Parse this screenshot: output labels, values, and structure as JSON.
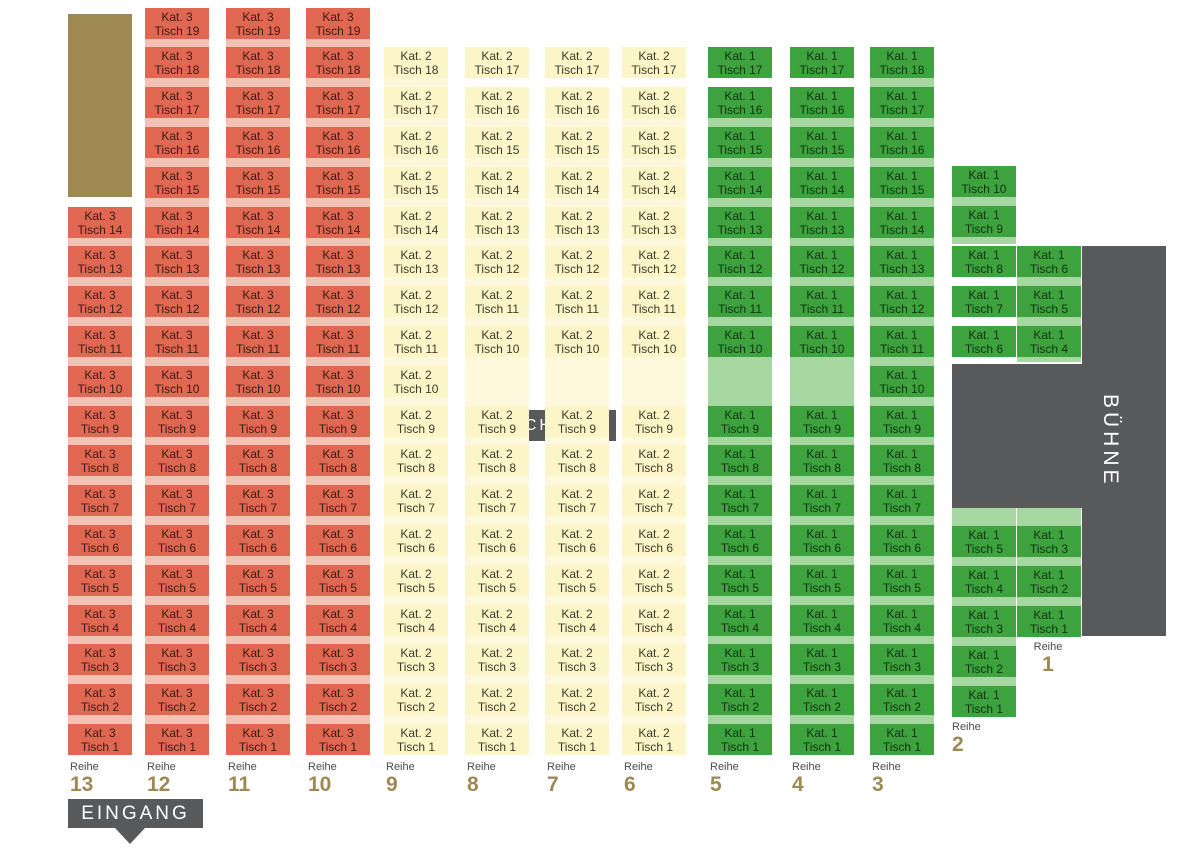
{
  "technik_label": "TECHNIK",
  "stage_label": "BÜHNE",
  "entrance_label": "EINGANG",
  "row_word": "Reihe",
  "table_word": "Tisch",
  "colors": {
    "kat1": "#3ea33e",
    "kat2": "#fcf5c8",
    "kat3": "#e06852",
    "stage": "#58595b",
    "row_number": "#9d8953",
    "olive_block": "#9f8953"
  },
  "rows": [
    {
      "row": "13",
      "kat": "Kat. 3",
      "tables": [
        "Tisch 14",
        "Tisch 13",
        "Tisch 12",
        "Tisch 11",
        "Tisch 10",
        "Tisch 9",
        "Tisch 8",
        "Tisch 7",
        "Tisch 6",
        "Tisch 5",
        "Tisch 4",
        "Tisch 3",
        "Tisch 2",
        "Tisch 1"
      ]
    },
    {
      "row": "12",
      "kat": "Kat. 3",
      "tables": [
        "Tisch 19",
        "Tisch 18",
        "Tisch 17",
        "Tisch 16",
        "Tisch 15",
        "Tisch 14",
        "Tisch 13",
        "Tisch 12",
        "Tisch 11",
        "Tisch 10",
        "Tisch 9",
        "Tisch 8",
        "Tisch 7",
        "Tisch 6",
        "Tisch 5",
        "Tisch 4",
        "Tisch 3",
        "Tisch 2",
        "Tisch 1"
      ]
    },
    {
      "row": "11",
      "kat": "Kat. 3",
      "tables": [
        "Tisch 19",
        "Tisch 18",
        "Tisch 17",
        "Tisch 16",
        "Tisch 15",
        "Tisch 14",
        "Tisch 13",
        "Tisch 12",
        "Tisch 11",
        "Tisch 10",
        "Tisch 9",
        "Tisch 8",
        "Tisch 7",
        "Tisch 6",
        "Tisch 5",
        "Tisch 4",
        "Tisch 3",
        "Tisch 2",
        "Tisch 1"
      ]
    },
    {
      "row": "10",
      "kat": "Kat. 3",
      "tables": [
        "Tisch 19",
        "Tisch 18",
        "Tisch 17",
        "Tisch 16",
        "Tisch 15",
        "Tisch 14",
        "Tisch 13",
        "Tisch 12",
        "Tisch 11",
        "Tisch 10",
        "Tisch 9",
        "Tisch 8",
        "Tisch 7",
        "Tisch 6",
        "Tisch 5",
        "Tisch 4",
        "Tisch 3",
        "Tisch 2",
        "Tisch 1"
      ]
    },
    {
      "row": "9",
      "kat": "Kat. 2",
      "tables": [
        "Tisch 18",
        "Tisch 17",
        "Tisch 16",
        "Tisch 15",
        "Tisch 14",
        "Tisch 13",
        "Tisch 12",
        "Tisch 11",
        "Tisch 10",
        "Tisch 9",
        "Tisch 8",
        "Tisch 7",
        "Tisch 6",
        "Tisch 5",
        "Tisch 4",
        "Tisch 3",
        "Tisch 2",
        "Tisch 1"
      ]
    },
    {
      "row": "8",
      "kat": "Kat. 2",
      "tables": [
        "Tisch 17",
        "Tisch 16",
        "Tisch 15",
        "Tisch 14",
        "Tisch 13",
        "Tisch 12",
        "Tisch 11",
        "Tisch 10",
        "Tisch 9",
        "Tisch 8",
        "Tisch 7",
        "Tisch 6",
        "Tisch 5",
        "Tisch 4",
        "Tisch 3",
        "Tisch 2",
        "Tisch 1"
      ]
    },
    {
      "row": "7",
      "kat": "Kat. 2",
      "tables": [
        "Tisch 17",
        "Tisch 16",
        "Tisch 15",
        "Tisch 14",
        "Tisch 13",
        "Tisch 12",
        "Tisch 11",
        "Tisch 10",
        "Tisch 9",
        "Tisch 8",
        "Tisch 7",
        "Tisch 6",
        "Tisch 5",
        "Tisch 4",
        "Tisch 3",
        "Tisch 2",
        "Tisch 1"
      ]
    },
    {
      "row": "6",
      "kat": "Kat. 2",
      "tables": [
        "Tisch 17",
        "Tisch 16",
        "Tisch 15",
        "Tisch 14",
        "Tisch 13",
        "Tisch 12",
        "Tisch 11",
        "Tisch 10",
        "Tisch 9",
        "Tisch 8",
        "Tisch 7",
        "Tisch 6",
        "Tisch 5",
        "Tisch 4",
        "Tisch 3",
        "Tisch 2",
        "Tisch 1"
      ]
    },
    {
      "row": "5",
      "kat": "Kat. 1",
      "tables": [
        "Tisch 17",
        "Tisch 16",
        "Tisch 15",
        "Tisch 14",
        "Tisch 13",
        "Tisch 12",
        "Tisch 11",
        "Tisch 10",
        "Tisch 9",
        "Tisch 8",
        "Tisch 7",
        "Tisch 6",
        "Tisch 5",
        "Tisch 4",
        "Tisch 3",
        "Tisch 2",
        "Tisch 1"
      ]
    },
    {
      "row": "4",
      "kat": "Kat. 1",
      "tables": [
        "Tisch 17",
        "Tisch 16",
        "Tisch 15",
        "Tisch 14",
        "Tisch 13",
        "Tisch 12",
        "Tisch 11",
        "Tisch 10",
        "Tisch 9",
        "Tisch 8",
        "Tisch 7",
        "Tisch 6",
        "Tisch 5",
        "Tisch 4",
        "Tisch 3",
        "Tisch 2",
        "Tisch 1"
      ]
    },
    {
      "row": "3",
      "kat": "Kat. 1",
      "tables": [
        "Tisch 18",
        "Tisch 17",
        "Tisch 16",
        "Tisch 15",
        "Tisch 14",
        "Tisch 13",
        "Tisch 12",
        "Tisch 11",
        "Tisch 10",
        "Tisch 9",
        "Tisch 8",
        "Tisch 7",
        "Tisch 6",
        "Tisch 5",
        "Tisch 4",
        "Tisch 3",
        "Tisch 2",
        "Tisch 1"
      ]
    },
    {
      "row": "2",
      "kat": "Kat. 1",
      "tables": [
        "Tisch 10",
        "Tisch 9",
        "Tisch 8",
        "Tisch 7",
        "Tisch 6",
        "Tisch 5",
        "Tisch 4",
        "Tisch 3",
        "Tisch 2",
        "Tisch 1"
      ]
    },
    {
      "row": "1",
      "kat": "Kat. 1",
      "tables": [
        "Tisch 6",
        "Tisch 5",
        "Tisch 4",
        "Tisch 3",
        "Tisch 2",
        "Tisch 1"
      ]
    }
  ]
}
